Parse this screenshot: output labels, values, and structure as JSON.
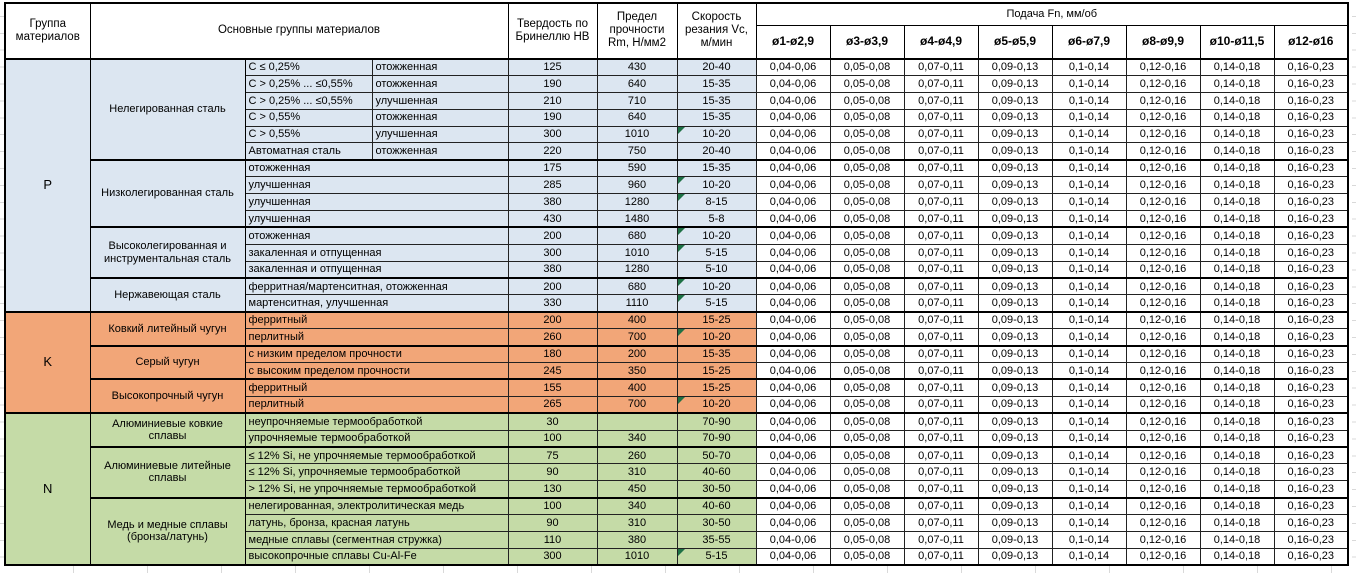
{
  "page": {
    "background": "#ffffff",
    "gridline_color": "#d9d9d9",
    "border_color": "#000000",
    "marker_color": "#1E7145"
  },
  "header": {
    "group_col": "Группа материалов",
    "materials_col": "Основные группы материалов",
    "hardness_col": "Твердость по Бринеллю HB",
    "strength_col": "Предел прочности Rm, Н/мм2",
    "speed_col": "Скорость резания Vc, м/мин",
    "feed_title": "Подача Fn, мм/об",
    "feed_cols": [
      "ø1-ø2,9",
      "ø3-ø3,9",
      "ø4-ø4,9",
      "ø5-ø5,9",
      "ø6-ø7,9",
      "ø8-ø9,9",
      "ø10-ø11,5",
      "ø12-ø16"
    ]
  },
  "feed_values": [
    "0,04-0,06",
    "0,05-0,08",
    "0,07-0,11",
    "0,09-0,13",
    "0,1-0,14",
    "0,12-0,16",
    "0,14-0,18",
    "0,16-0,23"
  ],
  "groups": [
    {
      "letter": "P",
      "color": "#DCE6F1",
      "families": [
        {
          "name": "Нелегированная сталь",
          "rows": [
            {
              "c1": "C ≤ 0,25%",
              "c2": "отожженная",
              "hb": "125",
              "rm": "430",
              "vc": "20-40",
              "marker": false
            },
            {
              "c1": "C > 0,25% ... ≤0,55%",
              "c2": "отожженная",
              "hb": "190",
              "rm": "640",
              "vc": "15-35",
              "marker": false
            },
            {
              "c1": "C > 0,25% ... ≤0,55%",
              "c2": "улучшенная",
              "hb": "210",
              "rm": "710",
              "vc": "15-35",
              "marker": false
            },
            {
              "c1": "C > 0,55%",
              "c2": "отожженная",
              "hb": "190",
              "rm": "640",
              "vc": "15-35",
              "marker": false
            },
            {
              "c1": "C > 0,55%",
              "c2": "улучшенная",
              "hb": "300",
              "rm": "1010",
              "vc": "10-20",
              "marker": true
            },
            {
              "c1": "Автоматная сталь",
              "c2": "отожженная",
              "hb": "220",
              "rm": "750",
              "vc": "20-40",
              "marker": false
            }
          ]
        },
        {
          "name": "Низколегированная сталь",
          "rows": [
            {
              "desc": "отожженная",
              "hb": "175",
              "rm": "590",
              "vc": "15-35",
              "marker": false
            },
            {
              "desc": "улучшенная",
              "hb": "285",
              "rm": "960",
              "vc": "10-20",
              "marker": true
            },
            {
              "desc": "улучшенная",
              "hb": "380",
              "rm": "1280",
              "vc": "8-15",
              "marker": true
            },
            {
              "desc": "улучшенная",
              "hb": "430",
              "rm": "1480",
              "vc": "5-8",
              "marker": false
            }
          ]
        },
        {
          "name": "Высоколегированная и инструментальная сталь",
          "rows": [
            {
              "desc": "отожженная",
              "hb": "200",
              "rm": "680",
              "vc": "10-20",
              "marker": true
            },
            {
              "desc": "закаленная и отпущенная",
              "hb": "300",
              "rm": "1010",
              "vc": "5-15",
              "marker": true
            },
            {
              "desc": "закаленная и отпущенная",
              "hb": "380",
              "rm": "1280",
              "vc": "5-10",
              "marker": false
            }
          ]
        },
        {
          "name": "Нержавеющая сталь",
          "rows": [
            {
              "desc": "ферритная/мартенситная, отожженная",
              "hb": "200",
              "rm": "680",
              "vc": "10-20",
              "marker": true
            },
            {
              "desc": "мартенситная, улучшенная",
              "hb": "330",
              "rm": "1110",
              "vc": "5-15",
              "marker": true
            }
          ]
        }
      ]
    },
    {
      "letter": "K",
      "color": "#F2A678",
      "families": [
        {
          "name": "Ковкий литейный чугун",
          "rows": [
            {
              "desc": "ферритный",
              "hb": "200",
              "rm": "400",
              "vc": "15-25",
              "marker": false
            },
            {
              "desc": "перлитный",
              "hb": "260",
              "rm": "700",
              "vc": "10-20",
              "marker": true
            }
          ]
        },
        {
          "name": "Серый чугун",
          "rows": [
            {
              "desc": "с низким пределом прочности",
              "hb": "180",
              "rm": "200",
              "vc": "15-35",
              "marker": false
            },
            {
              "desc": "с высоким пределом прочности",
              "hb": "245",
              "rm": "350",
              "vc": "15-25",
              "marker": false
            }
          ]
        },
        {
          "name": "Высокопрочный чугун",
          "rows": [
            {
              "desc": "ферритный",
              "hb": "155",
              "rm": "400",
              "vc": "15-25",
              "marker": false
            },
            {
              "desc": "перлитный",
              "hb": "265",
              "rm": "700",
              "vc": "10-20",
              "marker": true
            }
          ]
        }
      ]
    },
    {
      "letter": "N",
      "color": "#C5DBA7",
      "families": [
        {
          "name": "Алюминиевые ковкие сплавы",
          "rows": [
            {
              "desc": "неупрочняемые термообработкой",
              "hb": "30",
              "rm": "",
              "vc": "70-90",
              "marker": false
            },
            {
              "desc": "упрочняемые термообработкой",
              "hb": "100",
              "rm": "340",
              "vc": "70-90",
              "marker": false
            }
          ]
        },
        {
          "name": "Алюминиевые литейные сплавы",
          "rows": [
            {
              "desc": "≤ 12% Si, не упрочняемые термообработкой",
              "hb": "75",
              "rm": "260",
              "vc": "50-70",
              "marker": false
            },
            {
              "desc": "≤ 12% Si, упрочняемые термообработкой",
              "hb": "90",
              "rm": "310",
              "vc": "40-60",
              "marker": false
            },
            {
              "desc": "> 12% Si, не упрочняемые термообработкой",
              "hb": "130",
              "rm": "450",
              "vc": "30-50",
              "marker": false
            }
          ]
        },
        {
          "name": "Медь и медные сплавы (бронза/латунь)",
          "rows": [
            {
              "desc": "нелегированная, электролитическая медь",
              "hb": "100",
              "rm": "340",
              "vc": "40-60",
              "marker": false
            },
            {
              "desc": "латунь, бронза, красная латунь",
              "hb": "90",
              "rm": "310",
              "vc": "30-50",
              "marker": false
            },
            {
              "desc": "медные сплавы (сегментная стружка)",
              "hb": "110",
              "rm": "380",
              "vc": "35-55",
              "marker": false
            },
            {
              "desc": "высокопрочные сплавы Cu-Al-Fe",
              "hb": "300",
              "rm": "1010",
              "vc": "5-15",
              "marker": true
            }
          ]
        }
      ]
    }
  ]
}
